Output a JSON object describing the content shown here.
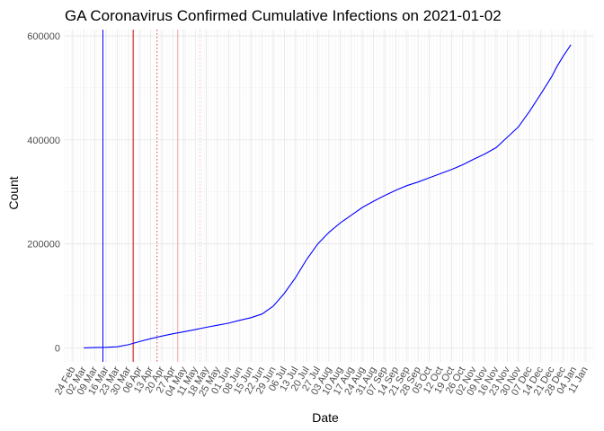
{
  "chart_data": {
    "type": "line",
    "title": "GA Coronavirus Confirmed Cumulative Infections on 2021-01-02",
    "xlabel": "Date",
    "ylabel": "Count",
    "ylim": [
      -27000,
      612000
    ],
    "xlim": [
      "2020-02-19",
      "2021-01-16"
    ],
    "y_ticks": [
      0,
      200000,
      400000,
      600000
    ],
    "y_tick_labels": [
      "0",
      "200000",
      "400000",
      "600000"
    ],
    "x_ticks": [
      "2020-02-24",
      "2020-03-02",
      "2020-03-09",
      "2020-03-16",
      "2020-03-23",
      "2020-03-30",
      "2020-04-06",
      "2020-04-13",
      "2020-04-20",
      "2020-04-27",
      "2020-05-04",
      "2020-05-11",
      "2020-05-18",
      "2020-05-25",
      "2020-06-01",
      "2020-06-08",
      "2020-06-15",
      "2020-06-22",
      "2020-06-29",
      "2020-07-06",
      "2020-07-13",
      "2020-07-20",
      "2020-07-27",
      "2020-08-03",
      "2020-08-10",
      "2020-08-17",
      "2020-08-24",
      "2020-08-31",
      "2020-09-07",
      "2020-09-14",
      "2020-09-21",
      "2020-09-28",
      "2020-10-05",
      "2020-10-12",
      "2020-10-19",
      "2020-10-26",
      "2020-11-02",
      "2020-11-09",
      "2020-11-16",
      "2020-11-23",
      "2020-11-30",
      "2020-12-07",
      "2020-12-14",
      "2020-12-21",
      "2020-12-28",
      "2021-01-04",
      "2021-01-11"
    ],
    "x_tick_labels": [
      "24 Feb",
      "02 Mar",
      "09 Mar",
      "16 Mar",
      "23 Mar",
      "30 Mar",
      "06 Apr",
      "13 Apr",
      "20 Apr",
      "27 Apr",
      "04 May",
      "11 May",
      "18 May",
      "25 May",
      "01 Jun",
      "08 Jun",
      "15 Jun",
      "22 Jun",
      "29 Jun",
      "06 Jul",
      "13 Jul",
      "20 Jul",
      "27 Jul",
      "03 Aug",
      "10 Aug",
      "17 Aug",
      "24 Aug",
      "31 Aug",
      "07 Sep",
      "14 Sep",
      "21 Sep",
      "28 Sep",
      "05 Oct",
      "12 Oct",
      "19 Oct",
      "26 Oct",
      "02 Nov",
      "09 Nov",
      "16 Nov",
      "23 Nov",
      "30 Nov",
      "07 Dec",
      "14 Dec",
      "21 Dec",
      "28 Dec",
      "04 Jan",
      "11 Jan"
    ],
    "grid": true,
    "series": [
      {
        "color": "#0000ff",
        "x": [
          "2020-03-02",
          "2020-03-09",
          "2020-03-16",
          "2020-03-23",
          "2020-03-30",
          "2020-04-06",
          "2020-04-13",
          "2020-04-20",
          "2020-04-27",
          "2020-05-04",
          "2020-05-11",
          "2020-05-18",
          "2020-05-25",
          "2020-06-01",
          "2020-06-08",
          "2020-06-15",
          "2020-06-22",
          "2020-06-29",
          "2020-07-06",
          "2020-07-13",
          "2020-07-20",
          "2020-07-27",
          "2020-08-03",
          "2020-08-10",
          "2020-08-17",
          "2020-08-24",
          "2020-08-31",
          "2020-09-07",
          "2020-09-14",
          "2020-09-21",
          "2020-09-28",
          "2020-10-05",
          "2020-10-12",
          "2020-10-19",
          "2020-10-26",
          "2020-11-02",
          "2020-11-09",
          "2020-11-16",
          "2020-11-23",
          "2020-11-30",
          "2020-12-07",
          "2020-12-14",
          "2020-12-21",
          "2020-12-24",
          "2020-12-28",
          "2021-01-02"
        ],
        "y": [
          0,
          500,
          1000,
          2000,
          6000,
          12000,
          17500,
          22500,
          27000,
          31000,
          35000,
          39500,
          43500,
          47500,
          53000,
          58000,
          65000,
          80000,
          105000,
          135000,
          170000,
          200000,
          222000,
          240000,
          255000,
          270000,
          282000,
          293000,
          303000,
          312000,
          319000,
          327000,
          335000,
          343000,
          352000,
          363000,
          373000,
          385000,
          405000,
          425000,
          455000,
          488000,
          522000,
          540000,
          560000,
          583000
        ]
      }
    ],
    "vlines": [
      {
        "x": "2020-03-14",
        "color": "#0000ff",
        "style": "solid"
      },
      {
        "x": "2020-04-02",
        "color": "#cc0000",
        "style": "solid"
      },
      {
        "x": "2020-04-17",
        "color": "#e04040",
        "style": "dotted"
      },
      {
        "x": "2020-04-30",
        "color": "#f0a0a0",
        "style": "solid"
      },
      {
        "x": "2020-05-14",
        "color": "#f5c0c0",
        "style": "dotted"
      }
    ]
  }
}
